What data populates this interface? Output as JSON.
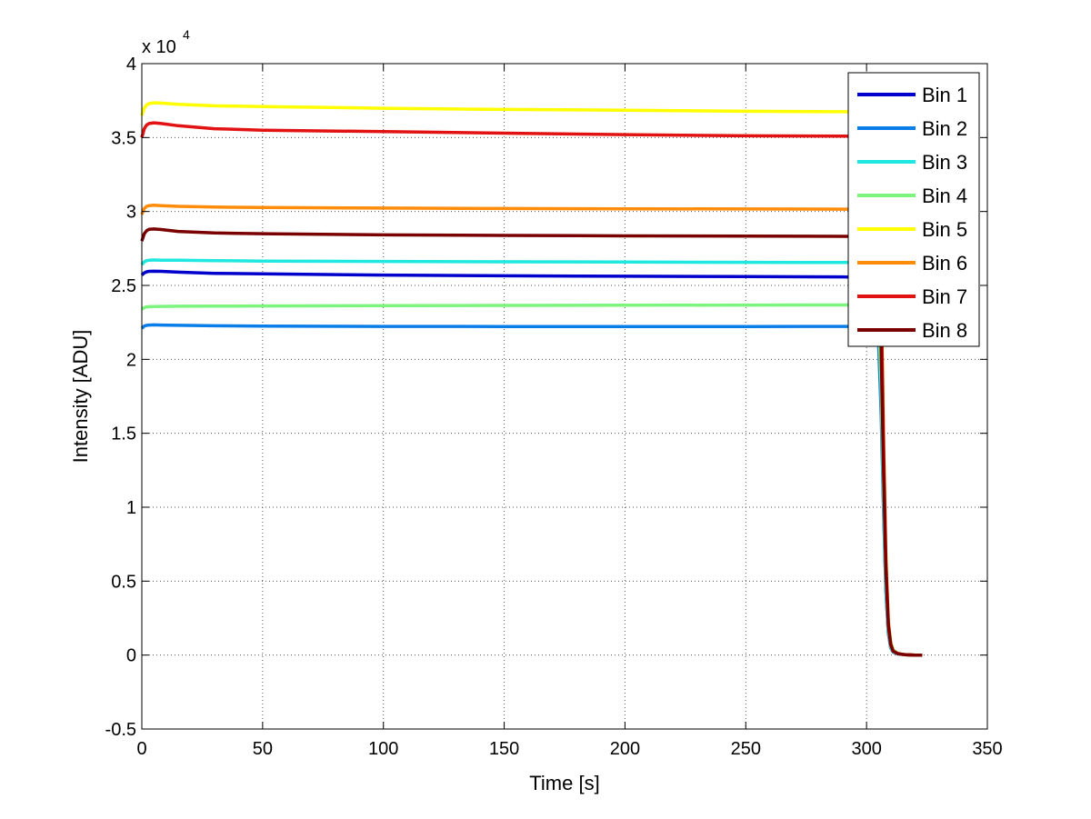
{
  "chart_data": {
    "type": "line",
    "xlabel": "Time [s]",
    "ylabel": "Intensity [ADU]",
    "y_multiplier": {
      "base": "x 10",
      "exponent": "4"
    },
    "xlim": [
      0,
      350
    ],
    "ylim": [
      -5000,
      40000
    ],
    "xticks": [
      0,
      50,
      100,
      150,
      200,
      250,
      300,
      350
    ],
    "xtick_labels": [
      "0",
      "50",
      "100",
      "150",
      "200",
      "250",
      "300",
      "350"
    ],
    "yticks": [
      -5000,
      0,
      5000,
      10000,
      15000,
      20000,
      25000,
      30000,
      35000,
      40000
    ],
    "ytick_labels": [
      "-0.5",
      "0",
      "0.5",
      "1",
      "1.5",
      "2",
      "2.5",
      "3",
      "3.5",
      "4"
    ],
    "grid": true,
    "legend_position": "top-right",
    "series": [
      {
        "name": "Bin 1",
        "color": "#0000cc",
        "x": [
          0,
          1,
          2,
          3,
          5,
          8,
          15,
          30,
          50,
          100,
          150,
          200,
          250,
          290,
          303,
          305,
          306,
          307,
          308,
          309,
          310,
          311,
          313,
          316,
          320,
          323
        ],
        "y": [
          25700,
          25850,
          25920,
          25950,
          25960,
          25950,
          25900,
          25820,
          25780,
          25700,
          25650,
          25620,
          25600,
          25580,
          25550,
          23500,
          18000,
          10500,
          4500,
          1500,
          500,
          200,
          80,
          20,
          0,
          0
        ]
      },
      {
        "name": "Bin 2",
        "color": "#0a7ee8",
        "x": [
          0,
          1,
          2,
          3,
          5,
          8,
          15,
          30,
          50,
          100,
          150,
          200,
          250,
          290,
          303,
          305,
          306,
          307,
          308,
          309,
          310,
          311,
          313,
          316,
          320,
          323
        ],
        "y": [
          22100,
          22250,
          22300,
          22320,
          22330,
          22320,
          22300,
          22270,
          22250,
          22230,
          22220,
          22220,
          22220,
          22230,
          22230,
          21000,
          16500,
          10000,
          4300,
          1500,
          500,
          200,
          80,
          20,
          0,
          0
        ]
      },
      {
        "name": "Bin 3",
        "color": "#1ee8e0",
        "x": [
          0,
          1,
          2,
          3,
          5,
          8,
          15,
          30,
          50,
          100,
          150,
          200,
          250,
          290,
          303,
          305,
          306,
          307,
          308,
          309,
          310,
          311,
          313,
          316,
          320,
          323
        ],
        "y": [
          26400,
          26600,
          26680,
          26700,
          26720,
          26710,
          26700,
          26680,
          26650,
          26620,
          26600,
          26580,
          26560,
          26550,
          26550,
          24500,
          18800,
          11000,
          4800,
          1600,
          550,
          220,
          90,
          20,
          0,
          0
        ]
      },
      {
        "name": "Bin 4",
        "color": "#7cf47e",
        "x": [
          0,
          1,
          2,
          3,
          5,
          8,
          15,
          30,
          50,
          100,
          150,
          200,
          250,
          290,
          303,
          305,
          306,
          307,
          308,
          309,
          310,
          311,
          313,
          316,
          320,
          323
        ],
        "y": [
          23400,
          23500,
          23550,
          23560,
          23570,
          23580,
          23590,
          23600,
          23610,
          23630,
          23650,
          23660,
          23670,
          23680,
          23700,
          22800,
          18500,
          11800,
          5800,
          2300,
          900,
          350,
          120,
          30,
          0,
          0
        ]
      },
      {
        "name": "Bin 5",
        "color": "#ffff00",
        "x": [
          0,
          1,
          2,
          3,
          5,
          8,
          15,
          30,
          50,
          100,
          150,
          200,
          250,
          290,
          303,
          305,
          306,
          307,
          308,
          309,
          310,
          311,
          313,
          316,
          320,
          323
        ],
        "y": [
          36500,
          37000,
          37200,
          37300,
          37350,
          37330,
          37250,
          37150,
          37100,
          36980,
          36900,
          36850,
          36780,
          36750,
          36720,
          34000,
          26000,
          15500,
          6800,
          2300,
          800,
          300,
          100,
          25,
          0,
          0
        ]
      },
      {
        "name": "Bin 6",
        "color": "#ff8c0a",
        "x": [
          0,
          1,
          2,
          3,
          5,
          8,
          15,
          30,
          50,
          100,
          150,
          200,
          250,
          290,
          303,
          305,
          306,
          307,
          308,
          309,
          310,
          311,
          313,
          316,
          320,
          323
        ],
        "y": [
          29800,
          30200,
          30350,
          30400,
          30420,
          30400,
          30350,
          30300,
          30270,
          30230,
          30200,
          30180,
          30170,
          30160,
          30150,
          27800,
          21500,
          12800,
          5600,
          1900,
          650,
          250,
          90,
          20,
          0,
          0
        ]
      },
      {
        "name": "Bin 7",
        "color": "#e31212",
        "x": [
          0,
          1,
          2,
          3,
          5,
          8,
          15,
          30,
          50,
          100,
          150,
          200,
          250,
          290,
          303,
          305,
          306,
          307,
          308,
          309,
          310,
          311,
          313,
          316,
          320,
          323
        ],
        "y": [
          35000,
          35600,
          35850,
          35950,
          36000,
          35950,
          35800,
          35600,
          35500,
          35400,
          35300,
          35200,
          35120,
          35100,
          35080,
          32500,
          25000,
          14800,
          6500,
          2200,
          750,
          280,
          100,
          25,
          0,
          0
        ]
      },
      {
        "name": "Bin 8",
        "color": "#7a0000",
        "x": [
          0,
          1,
          2,
          3,
          5,
          8,
          15,
          30,
          50,
          100,
          150,
          200,
          250,
          290,
          303,
          305,
          306,
          307,
          308,
          309,
          310,
          311,
          313,
          316,
          320,
          323
        ],
        "y": [
          28000,
          28500,
          28700,
          28800,
          28820,
          28780,
          28650,
          28550,
          28500,
          28420,
          28380,
          28350,
          28330,
          28320,
          28310,
          26500,
          21000,
          12800,
          5800,
          2000,
          700,
          260,
          90,
          20,
          0,
          0
        ]
      }
    ]
  }
}
